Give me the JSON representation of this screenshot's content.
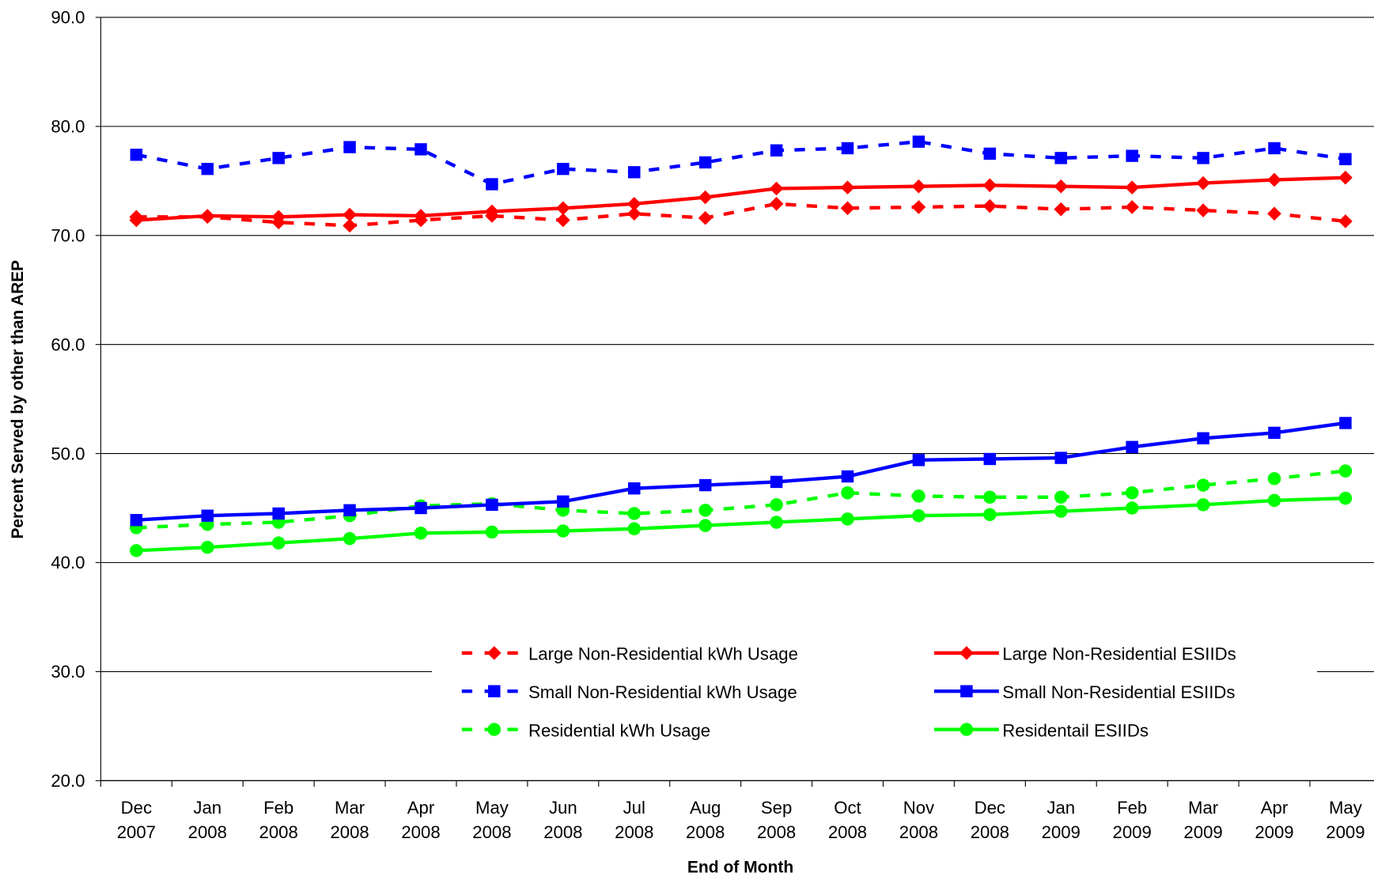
{
  "chart_data": {
    "type": "line",
    "y_label": "Percent Served by other than AREP",
    "x_label": "End of Month",
    "categories": [
      "Dec 2007",
      "Jan 2008",
      "Feb 2008",
      "Mar 2008",
      "Apr 2008",
      "May 2008",
      "Jun 2008",
      "Jul 2008",
      "Aug 2008",
      "Sep 2008",
      "Oct 2008",
      "Nov 2008",
      "Dec 2008",
      "Jan 2009",
      "Feb 2009",
      "Mar 2009",
      "Apr 2009",
      "May 2009"
    ],
    "series": [
      {
        "name": "Large Non-Residential kWh Usage",
        "color": "#ff0000",
        "style": "dashed",
        "marker": "diamond",
        "values": [
          71.7,
          71.7,
          71.2,
          70.9,
          71.4,
          71.8,
          71.4,
          72.0,
          71.6,
          72.9,
          72.5,
          72.6,
          72.7,
          72.4,
          72.6,
          72.3,
          72.0,
          71.3
        ]
      },
      {
        "name": "Small Non-Residential kWh Usage",
        "color": "#0000ff",
        "style": "dashed",
        "marker": "square",
        "values": [
          77.4,
          76.1,
          77.1,
          78.1,
          77.9,
          74.7,
          76.1,
          75.8,
          76.7,
          77.8,
          78.0,
          78.6,
          77.5,
          77.1,
          77.3,
          77.1,
          78.0,
          77.0
        ]
      },
      {
        "name": "Residential kWh Usage",
        "color": "#00ff00",
        "style": "dashed",
        "marker": "circle",
        "values": [
          43.2,
          43.5,
          43.7,
          44.3,
          45.2,
          45.4,
          44.8,
          44.5,
          44.8,
          45.3,
          46.4,
          46.1,
          46.0,
          46.0,
          46.4,
          47.1,
          47.7,
          48.4
        ]
      },
      {
        "name": "Large Non-Residential ESIIDs",
        "color": "#ff0000",
        "style": "solid",
        "marker": "diamond",
        "values": [
          71.4,
          71.8,
          71.7,
          71.9,
          71.8,
          72.2,
          72.5,
          72.9,
          73.5,
          74.3,
          74.4,
          74.5,
          74.6,
          74.5,
          74.4,
          74.8,
          75.1,
          75.3
        ]
      },
      {
        "name": "Small Non-Residential ESIIDs",
        "color": "#0000ff",
        "style": "solid",
        "marker": "square",
        "values": [
          43.9,
          44.3,
          44.5,
          44.8,
          45.0,
          45.3,
          45.6,
          46.8,
          47.1,
          47.4,
          47.9,
          49.4,
          49.5,
          49.6,
          50.6,
          51.4,
          51.9,
          52.8
        ]
      },
      {
        "name": "Residentail ESIIDs",
        "color": "#00ff00",
        "style": "solid",
        "marker": "circle",
        "values": [
          41.1,
          41.4,
          41.8,
          42.2,
          42.7,
          42.8,
          42.9,
          43.1,
          43.4,
          43.7,
          44.0,
          44.3,
          44.4,
          44.7,
          45.0,
          45.3,
          45.7,
          45.9
        ]
      }
    ],
    "ylim": [
      20,
      90
    ],
    "yticks": [
      {
        "value": 20,
        "label": "20.0"
      },
      {
        "value": 30,
        "label": "30.0"
      },
      {
        "value": 40,
        "label": "40.0"
      },
      {
        "value": 50,
        "label": "50.0"
      },
      {
        "value": 60,
        "label": "60.0"
      },
      {
        "value": 70,
        "label": "70.0"
      },
      {
        "value": 80,
        "label": "80.0"
      },
      {
        "value": 90,
        "label": "90.0"
      }
    ],
    "grid": true
  }
}
